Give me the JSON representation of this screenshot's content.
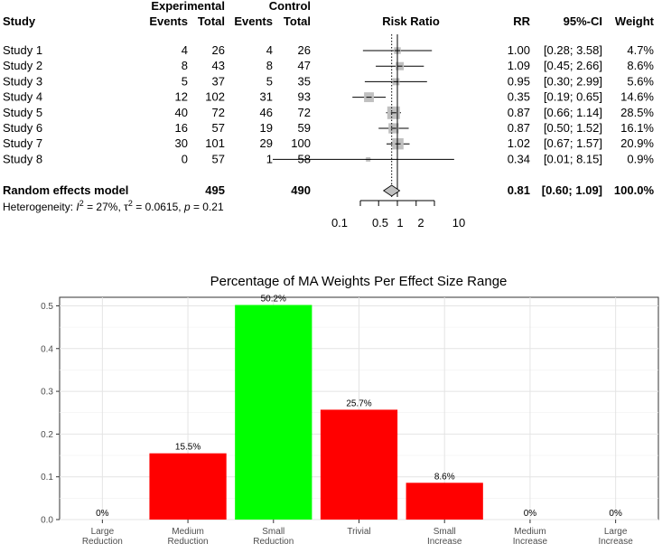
{
  "forest": {
    "header_group": {
      "experimental": "Experimental",
      "control": "Control"
    },
    "columns": {
      "study": "Study",
      "events_e": "Events",
      "total_e": "Total",
      "events_c": "Events",
      "total_c": "Total",
      "plot": "Risk Ratio",
      "rr": "RR",
      "ci": "95%-CI",
      "weight": "Weight"
    },
    "studies": [
      {
        "name": "Study 1",
        "events_e": "4",
        "total_e": "26",
        "events_c": "4",
        "total_c": "26",
        "rr": 1.0,
        "lo": 0.28,
        "hi": 3.58,
        "rr_text": "1.00",
        "ci_text": "[0.28; 3.58]",
        "weight_text": "4.7%",
        "weight": 4.7
      },
      {
        "name": "Study 2",
        "events_e": "8",
        "total_e": "43",
        "events_c": "8",
        "total_c": "47",
        "rr": 1.09,
        "lo": 0.45,
        "hi": 2.66,
        "rr_text": "1.09",
        "ci_text": "[0.45; 2.66]",
        "weight_text": "8.6%",
        "weight": 8.6
      },
      {
        "name": "Study 3",
        "events_e": "5",
        "total_e": "37",
        "events_c": "5",
        "total_c": "35",
        "rr": 0.95,
        "lo": 0.3,
        "hi": 2.99,
        "rr_text": "0.95",
        "ci_text": "[0.30; 2.99]",
        "weight_text": "5.6%",
        "weight": 5.6
      },
      {
        "name": "Study 4",
        "events_e": "12",
        "total_e": "102",
        "events_c": "31",
        "total_c": "93",
        "rr": 0.35,
        "lo": 0.19,
        "hi": 0.65,
        "rr_text": "0.35",
        "ci_text": "[0.19; 0.65]",
        "weight_text": "14.6%",
        "weight": 14.6
      },
      {
        "name": "Study 5",
        "events_e": "40",
        "total_e": "72",
        "events_c": "46",
        "total_c": "72",
        "rr": 0.87,
        "lo": 0.66,
        "hi": 1.14,
        "rr_text": "0.87",
        "ci_text": "[0.66; 1.14]",
        "weight_text": "28.5%",
        "weight": 28.5
      },
      {
        "name": "Study 6",
        "events_e": "16",
        "total_e": "57",
        "events_c": "19",
        "total_c": "59",
        "rr": 0.87,
        "lo": 0.5,
        "hi": 1.52,
        "rr_text": "0.87",
        "ci_text": "[0.50; 1.52]",
        "weight_text": "16.1%",
        "weight": 16.1
      },
      {
        "name": "Study 7",
        "events_e": "30",
        "total_e": "101",
        "events_c": "29",
        "total_c": "100",
        "rr": 1.02,
        "lo": 0.67,
        "hi": 1.57,
        "rr_text": "1.02",
        "ci_text": "[0.67; 1.57]",
        "weight_text": "20.9%",
        "weight": 20.9
      },
      {
        "name": "Study 8",
        "events_e": "0",
        "total_e": "57",
        "events_c": "1",
        "total_c": "58",
        "rr": 0.34,
        "lo": 0.01,
        "hi": 8.15,
        "rr_text": "0.34",
        "ci_text": "[0.01; 8.15]",
        "weight_text": "0.9%",
        "weight": 0.9
      }
    ],
    "pooled": {
      "label": "Random effects model",
      "total_e": "495",
      "total_c": "490",
      "rr": 0.81,
      "lo": 0.6,
      "hi": 1.09,
      "rr_text": "0.81",
      "ci_text": "[0.60; 1.09]",
      "weight_text": "100.0%"
    },
    "heterogeneity": {
      "prefix": "Heterogeneity: ",
      "i_sym": "I",
      "sup": "2",
      "i_val": " = 27%, ",
      "tau_sym": "τ",
      "tau_val": " = 0.0615, ",
      "p_sym": "p",
      "p_val": " = 0.21"
    },
    "axis": {
      "ticks": [
        0.1,
        0.5,
        1,
        2,
        10
      ],
      "tick_labels": [
        "0.1",
        "0.5",
        "1",
        "2",
        "10"
      ],
      "scale": "log"
    },
    "colors": {
      "square": "#c0c0c0",
      "diamond": "#c0c0c0"
    }
  },
  "chart_data": {
    "type": "bar",
    "title": "Percentage of MA Weights Per Effect Size Range",
    "categories": [
      [
        "Large",
        "Reduction"
      ],
      [
        "Medium",
        "Reduction"
      ],
      [
        "Small",
        "Reduction"
      ],
      [
        "Trivial"
      ],
      [
        "Small",
        "Increase"
      ],
      [
        "Medium",
        "Increase"
      ],
      [
        "Large",
        "Increase"
      ]
    ],
    "values": [
      0,
      0.155,
      0.502,
      0.257,
      0.086,
      0,
      0
    ],
    "labels": [
      "0%",
      "15.5%",
      "50.2%",
      "25.7%",
      "8.6%",
      "0%",
      "0%"
    ],
    "colors": [
      "#ff0000",
      "#ff0000",
      "#00ff00",
      "#ff0000",
      "#ff0000",
      "#ff0000",
      "#ff0000"
    ],
    "ylim": [
      0,
      0.52
    ],
    "yticks": [
      0.0,
      0.1,
      0.2,
      0.3,
      0.4,
      0.5
    ],
    "ytick_labels": [
      "0.0",
      "0.1",
      "0.2",
      "0.3",
      "0.4",
      "0.5"
    ],
    "grid": true,
    "xlabel": "",
    "ylabel": ""
  }
}
